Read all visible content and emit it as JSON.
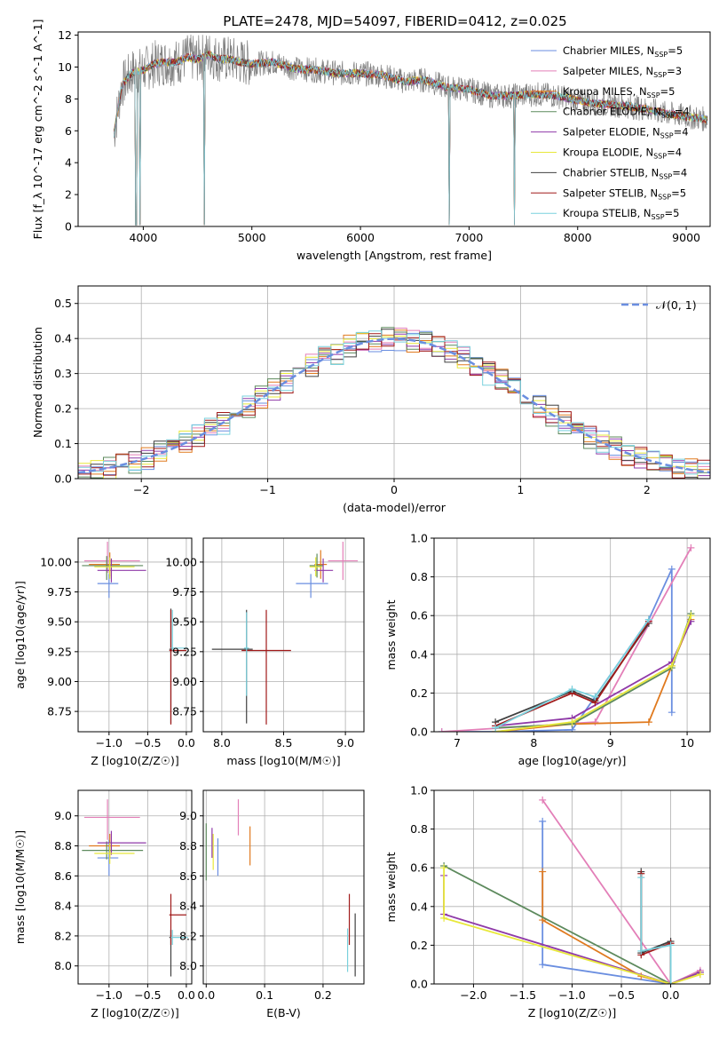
{
  "figure_title": "PLATE=2478, MJD=54097, FIBERID=0412, z=0.025",
  "models": [
    {
      "name": "Chabrier MILES",
      "n": "5",
      "color": "#6a8ee0"
    },
    {
      "name": "Salpeter MILES",
      "n": "3",
      "color": "#e37fb8"
    },
    {
      "name": "Kroupa MILES",
      "n": "5",
      "color": "#e07a1f"
    },
    {
      "name": "Chabrier ELODIE",
      "n": "4",
      "color": "#5d8a5d"
    },
    {
      "name": "Salpeter ELODIE",
      "n": "4",
      "color": "#8f3aa8"
    },
    {
      "name": "Kroupa ELODIE",
      "n": "4",
      "color": "#e8e83a"
    },
    {
      "name": "Chabrier STELIB",
      "n": "4",
      "color": "#404040"
    },
    {
      "name": "Salpeter STELIB",
      "n": "5",
      "color": "#a01a1a"
    },
    {
      "name": "Kroupa STELIB",
      "n": "5",
      "color": "#7ad1dd"
    }
  ],
  "chart_data": [
    {
      "id": "spectrum",
      "type": "line",
      "xlabel": "wavelength [Angstrom, rest frame]",
      "ylabel": "Flux [f_λ 10^-17 erg cm^-2 s^-1 A^-1]",
      "xlim": [
        3400,
        9220
      ],
      "ylim": [
        0,
        12.2
      ],
      "xticks": [
        4000,
        5000,
        6000,
        7000,
        8000,
        9000
      ],
      "yticks": [
        0,
        2,
        4,
        6,
        8,
        10,
        12
      ],
      "data_color": "#808080",
      "x": [
        3730,
        3800,
        3900,
        4000,
        4100,
        4200,
        4300,
        4400,
        4500,
        4600,
        4700,
        4800,
        4900,
        5000,
        5200,
        5400,
        5600,
        5800,
        6000,
        6200,
        6400,
        6600,
        6800,
        7000,
        7200,
        7400,
        7600,
        7800,
        8000,
        8200,
        8400,
        8600,
        8800,
        9000,
        9200
      ],
      "y": [
        5.8,
        8.8,
        9.7,
        9.8,
        10.2,
        10.3,
        10.3,
        10.6,
        10.5,
        10.8,
        10.5,
        10.5,
        10.3,
        10.2,
        10.3,
        9.9,
        9.8,
        9.6,
        9.6,
        9.5,
        9.1,
        9.2,
        8.7,
        8.6,
        8.2,
        8.2,
        8.3,
        8.2,
        7.9,
        7.7,
        7.6,
        7.4,
        7.1,
        6.9,
        6.7
      ],
      "dips": [
        3934,
        3968,
        4560,
        6820,
        7420
      ],
      "legend": "top-right"
    },
    {
      "id": "residual-histogram",
      "type": "line",
      "xlabel": "(data-model)/error",
      "ylabel": "Normed distribution",
      "xlim": [
        -2.5,
        2.5
      ],
      "ylim": [
        0,
        0.55
      ],
      "xticks": [
        -2,
        -1,
        0,
        1,
        2
      ],
      "yticks": [
        0.0,
        0.1,
        0.2,
        0.3,
        0.4,
        0.5
      ],
      "bin_width": 0.1,
      "normal_label": "𝒩(0, 1)",
      "normal_color": "#6a8ee0"
    },
    {
      "id": "age-vs-Z",
      "type": "scatter",
      "xlabel": "Z [log10(Z/Z☉)]",
      "ylabel": "age  [log10(age/yr)]",
      "xlim": [
        -1.4,
        0.07
      ],
      "ylim": [
        8.58,
        10.2
      ],
      "xticks": [
        -1.0,
        -0.5,
        0.0
      ],
      "yticks": [
        8.75,
        9.0,
        9.25,
        9.5,
        9.75,
        10.0
      ],
      "points": [
        {
          "x": -1.0,
          "xerr": [
            0.15,
            0.12
          ],
          "y": 9.82,
          "yerr": [
            0.12,
            0.08
          ]
        },
        {
          "x": -1.02,
          "xerr": [
            0.3,
            0.42
          ],
          "y": 10.01,
          "yerr": [
            0.1,
            0.16
          ]
        },
        {
          "x": -0.99,
          "xerr": [
            0.27,
            0.13
          ],
          "y": 9.98,
          "yerr": [
            0.1,
            0.1
          ]
        },
        {
          "x": -1.03,
          "xerr": [
            0.32,
            0.47
          ],
          "y": 9.97,
          "yerr": [
            0.12,
            0.08
          ]
        },
        {
          "x": -0.97,
          "xerr": [
            0.18,
            0.45
          ],
          "y": 9.93,
          "yerr": [
            0.1,
            0.1
          ]
        },
        {
          "x": -0.99,
          "xerr": [
            0.2,
            0.32
          ],
          "y": 9.96,
          "yerr": [
            0.1,
            0.08
          ]
        },
        {
          "x": -0.2,
          "xerr": [
            0.02,
            0.02
          ],
          "y": 9.27,
          "yerr": [
            0.62,
            0.34
          ]
        },
        {
          "x": -0.2,
          "xerr": [
            0.02,
            0.2
          ],
          "y": 9.26,
          "yerr": [
            0.62,
            0.34
          ]
        },
        {
          "x": -0.18,
          "xerr": [
            0.02,
            0.2
          ],
          "y": 9.28,
          "yerr": [
            0.02,
            0.32
          ]
        }
      ]
    },
    {
      "id": "age-vs-mass",
      "type": "scatter",
      "xlabel": "mass [log10(M/M☉)]",
      "ylabel": "",
      "xlim": [
        7.85,
        9.15
      ],
      "ylim": [
        8.58,
        10.2
      ],
      "xticks": [
        8.0,
        8.5,
        9.0
      ],
      "yticks": [
        8.75,
        9.0,
        9.25,
        9.5,
        9.75,
        10.0
      ],
      "points": [
        {
          "x": 8.72,
          "xerr": [
            0.12,
            0.14
          ],
          "y": 9.82,
          "yerr": [
            0.12,
            0.08
          ]
        },
        {
          "x": 8.98,
          "xerr": [
            0.12,
            0.12
          ],
          "y": 10.01,
          "yerr": [
            0.16,
            0.16
          ]
        },
        {
          "x": 8.8,
          "xerr": [
            0.05,
            0.05
          ],
          "y": 9.98,
          "yerr": [
            0.12,
            0.12
          ]
        },
        {
          "x": 8.77,
          "xerr": [
            0.06,
            0.05
          ],
          "y": 9.97,
          "yerr": [
            0.1,
            0.1
          ]
        },
        {
          "x": 8.82,
          "xerr": [
            0.07,
            0.08
          ],
          "y": 9.93,
          "yerr": [
            0.1,
            0.1
          ]
        },
        {
          "x": 8.76,
          "xerr": [
            0.05,
            0.05
          ],
          "y": 9.96,
          "yerr": [
            0.08,
            0.08
          ]
        },
        {
          "x": 8.2,
          "xerr": [
            0.28,
            0.05
          ],
          "y": 9.27,
          "yerr": [
            0.62,
            0.33
          ]
        },
        {
          "x": 8.36,
          "xerr": [
            0.2,
            0.2
          ],
          "y": 9.26,
          "yerr": [
            0.62,
            0.34
          ]
        },
        {
          "x": 8.2,
          "xerr": [
            0.02,
            0.02
          ],
          "y": 9.28,
          "yerr": [
            0.4,
            0.3
          ]
        }
      ]
    },
    {
      "id": "mass-weight-vs-age",
      "type": "line",
      "xlabel": "age  [log10(age/yr)]",
      "ylabel": "mass weight",
      "xlim": [
        6.7,
        10.3
      ],
      "ylim": [
        0.0,
        1.0
      ],
      "xticks": [
        7,
        8,
        9,
        10
      ],
      "yticks": [
        0.0,
        0.2,
        0.4,
        0.6,
        0.8,
        1.0
      ],
      "series": [
        {
          "x": [
            6.8,
            7.5,
            8.5,
            9.5,
            9.8,
            9.8
          ],
          "y": [
            0.0,
            0.0,
            0.01,
            0.58,
            0.84,
            0.1
          ]
        },
        {
          "x": [
            6.8,
            8.8,
            10.05
          ],
          "y": [
            0.0,
            0.05,
            0.95
          ]
        },
        {
          "x": [
            7.5,
            8.5,
            9.5,
            9.8,
            10.05
          ],
          "y": [
            0.0,
            0.04,
            0.05,
            0.34,
            0.58
          ]
        },
        {
          "x": [
            7.5,
            8.5,
            9.8,
            10.05
          ],
          "y": [
            0.02,
            0.04,
            0.33,
            0.61
          ]
        },
        {
          "x": [
            7.5,
            8.5,
            9.8,
            10.05
          ],
          "y": [
            0.03,
            0.07,
            0.36,
            0.57
          ]
        },
        {
          "x": [
            7.5,
            8.5,
            9.8,
            10.05
          ],
          "y": [
            0.0,
            0.05,
            0.34,
            0.6
          ]
        },
        {
          "x": [
            7.5,
            8.5,
            8.8,
            9.5
          ],
          "y": [
            0.05,
            0.21,
            0.16,
            0.56
          ]
        },
        {
          "x": [
            7.5,
            8.5,
            8.8,
            9.5
          ],
          "y": [
            0.03,
            0.2,
            0.15,
            0.57
          ]
        },
        {
          "x": [
            7.5,
            8.5,
            8.8,
            9.5
          ],
          "y": [
            0.02,
            0.22,
            0.18,
            0.58
          ]
        }
      ]
    },
    {
      "id": "mass-vs-Z",
      "type": "scatter",
      "xlabel": "Z [log10(Z/Z☉)]",
      "ylabel": "mass [log10(M/M☉)]",
      "xlim": [
        -1.4,
        0.07
      ],
      "ylim": [
        7.88,
        9.17
      ],
      "xticks": [
        -1.0,
        -0.5,
        0.0
      ],
      "yticks": [
        8.0,
        8.2,
        8.4,
        8.6,
        8.8,
        9.0
      ],
      "points": [
        {
          "x": -1.0,
          "xerr": [
            0.15,
            0.12
          ],
          "y": 8.72,
          "yerr": [
            0.12,
            0.12
          ]
        },
        {
          "x": -1.02,
          "xerr": [
            0.3,
            0.42
          ],
          "y": 8.99,
          "yerr": [
            0.15,
            0.12
          ]
        },
        {
          "x": -0.99,
          "xerr": [
            0.27,
            0.13
          ],
          "y": 8.8,
          "yerr": [
            0.08,
            0.08
          ]
        },
        {
          "x": -1.03,
          "xerr": [
            0.32,
            0.47
          ],
          "y": 8.77,
          "yerr": [
            0.06,
            0.06
          ]
        },
        {
          "x": -0.97,
          "xerr": [
            0.18,
            0.45
          ],
          "y": 8.82,
          "yerr": [
            0.08,
            0.08
          ]
        },
        {
          "x": -0.99,
          "xerr": [
            0.2,
            0.32
          ],
          "y": 8.75,
          "yerr": [
            0.07,
            0.07
          ]
        },
        {
          "x": -0.2,
          "xerr": [
            0.02,
            0.02
          ],
          "y": 8.19,
          "yerr": [
            0.26,
            0.05
          ]
        },
        {
          "x": -0.2,
          "xerr": [
            0.02,
            0.2
          ],
          "y": 8.34,
          "yerr": [
            0.2,
            0.14
          ]
        },
        {
          "x": -0.18,
          "xerr": [
            0.02,
            0.2
          ],
          "y": 8.19,
          "yerr": [
            0.05,
            0.05
          ]
        }
      ]
    },
    {
      "id": "mass-vs-ebv",
      "type": "scatter",
      "xlabel": "E(B-V)",
      "ylabel": "",
      "xlim": [
        -0.005,
        0.27
      ],
      "ylim": [
        7.88,
        9.17
      ],
      "xticks": [
        0.0,
        0.1,
        0.2
      ],
      "yticks": [
        8.0,
        8.2,
        8.4,
        8.6,
        8.8,
        9.0
      ],
      "points": [
        {
          "x": 0.02,
          "y": 8.75,
          "yerr": [
            0.15,
            0.1
          ]
        },
        {
          "x": 0.055,
          "y": 8.99,
          "yerr": [
            0.12,
            0.12
          ]
        },
        {
          "x": 0.075,
          "y": 8.8,
          "yerr": [
            0.13,
            0.13
          ]
        },
        {
          "x": 0.0,
          "y": 8.77,
          "yerr": [
            0.2,
            0.18
          ]
        },
        {
          "x": 0.01,
          "y": 8.82,
          "yerr": [
            0.1,
            0.1
          ]
        },
        {
          "x": 0.012,
          "y": 8.76,
          "yerr": [
            0.12,
            0.12
          ]
        },
        {
          "x": 0.255,
          "y": 8.19,
          "yerr": [
            0.26,
            0.16
          ]
        },
        {
          "x": 0.245,
          "y": 8.34,
          "yerr": [
            0.2,
            0.14
          ]
        },
        {
          "x": 0.242,
          "y": 8.2,
          "yerr": [
            0.24,
            0.05
          ]
        }
      ]
    },
    {
      "id": "mass-weight-vs-Z",
      "type": "line",
      "xlabel": "Z [log10(Z/Z☉)]",
      "ylabel": "mass weight",
      "xlim": [
        -2.4,
        0.4
      ],
      "ylim": [
        0.0,
        1.0
      ],
      "xticks": [
        -2.0,
        -1.5,
        -1.0,
        -0.5,
        0.0
      ],
      "yticks": [
        0.0,
        0.2,
        0.4,
        0.6,
        0.8,
        1.0
      ],
      "series": [
        {
          "x": [
            -1.3,
            -1.3,
            0.0,
            0.0,
            0.0
          ],
          "y": [
            0.84,
            0.1,
            0.0,
            0.0,
            0.0
          ]
        },
        {
          "x": [
            -1.3,
            0.0,
            0.3
          ],
          "y": [
            0.95,
            0.0,
            0.07
          ]
        },
        {
          "x": [
            -1.3,
            -1.3,
            -0.3,
            0.0,
            0.3
          ],
          "y": [
            0.58,
            0.33,
            0.04,
            0.0,
            0.05
          ]
        },
        {
          "x": [
            -2.3,
            0.0,
            0.3
          ],
          "y": [
            0.61,
            0.0,
            0.06
          ]
        },
        {
          "x": [
            -2.3,
            -2.3,
            0.0,
            0.3
          ],
          "y": [
            0.56,
            0.36,
            0.0,
            0.06
          ]
        },
        {
          "x": [
            -2.3,
            -2.3,
            0.0,
            0.3
          ],
          "y": [
            0.6,
            0.34,
            0.0,
            0.05
          ]
        },
        {
          "x": [
            -0.3,
            -0.3,
            0.0,
            0.0
          ],
          "y": [
            0.58,
            0.16,
            0.22,
            0.0
          ]
        },
        {
          "x": [
            -0.3,
            -0.3,
            0.0,
            0.0
          ],
          "y": [
            0.57,
            0.15,
            0.21,
            0.0
          ]
        },
        {
          "x": [
            -0.3,
            -0.3,
            0.0,
            0.0
          ],
          "y": [
            0.55,
            0.17,
            0.2,
            0.0
          ]
        }
      ]
    }
  ]
}
